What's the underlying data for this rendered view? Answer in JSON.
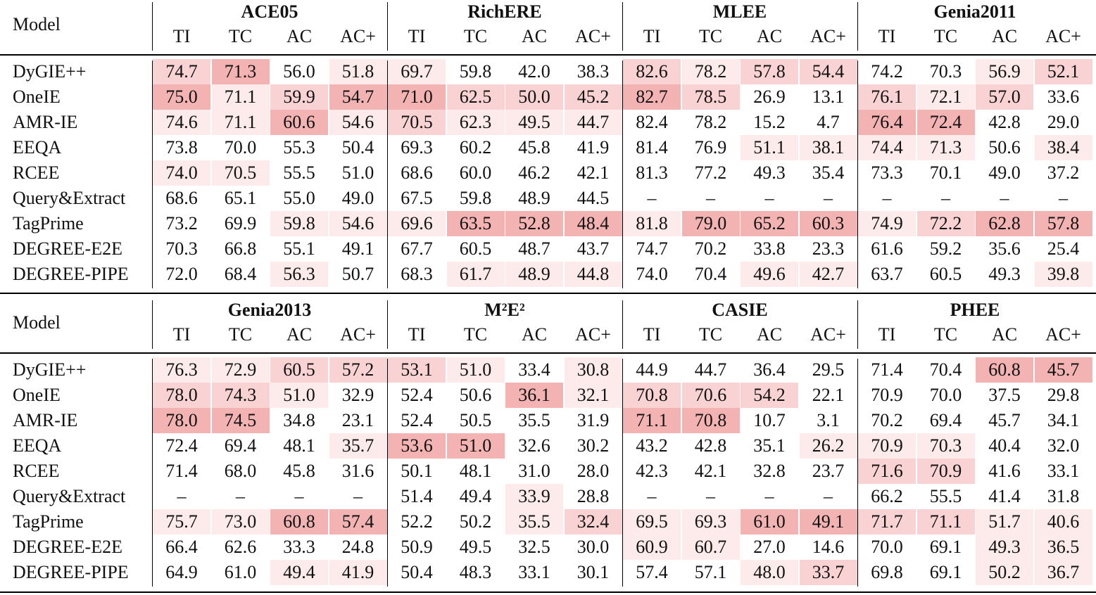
{
  "shade_colors": [
    "#fdeaea",
    "#f9d3d3",
    "#f3b3b3"
  ],
  "tables": [
    {
      "model_header": "Model",
      "groups": [
        {
          "name": "ACE05",
          "columns": [
            "TI",
            "TC",
            "AC",
            "AC+"
          ]
        },
        {
          "name": "RichERE",
          "columns": [
            "TI",
            "TC",
            "AC",
            "AC+"
          ]
        },
        {
          "name": "MLEE",
          "columns": [
            "TI",
            "TC",
            "AC",
            "AC+"
          ]
        },
        {
          "name": "Genia2011",
          "columns": [
            "TI",
            "TC",
            "AC",
            "AC+"
          ]
        }
      ],
      "rows": [
        {
          "model": "DyGIE++",
          "cells": [
            "74.7",
            "71.3",
            "56.0",
            "51.8",
            "69.7",
            "59.8",
            "42.0",
            "38.3",
            "82.6",
            "78.2",
            "57.8",
            "54.4",
            "74.2",
            "70.3",
            "56.9",
            "52.1"
          ],
          "shades": [
            2,
            3,
            0,
            1,
            1,
            0,
            0,
            0,
            2,
            1,
            2,
            2,
            0,
            0,
            1,
            2
          ]
        },
        {
          "model": "OneIE",
          "cells": [
            "75.0",
            "71.1",
            "59.9",
            "54.7",
            "71.0",
            "62.5",
            "50.0",
            "45.2",
            "82.7",
            "78.5",
            "26.9",
            "13.1",
            "76.1",
            "72.1",
            "57.0",
            "33.6"
          ],
          "shades": [
            3,
            1,
            2,
            3,
            3,
            2,
            2,
            2,
            3,
            2,
            0,
            0,
            2,
            1,
            2,
            0
          ]
        },
        {
          "model": "AMR-IE",
          "cells": [
            "74.6",
            "71.1",
            "60.6",
            "54.6",
            "70.5",
            "62.3",
            "49.5",
            "44.7",
            "82.4",
            "78.2",
            "15.2",
            "4.7",
            "76.4",
            "72.4",
            "42.8",
            "29.0"
          ],
          "shades": [
            1,
            1,
            3,
            1,
            2,
            1,
            1,
            1,
            0,
            0,
            0,
            0,
            3,
            3,
            0,
            0
          ]
        },
        {
          "model": "EEQA",
          "cells": [
            "73.8",
            "70.0",
            "55.3",
            "50.4",
            "69.3",
            "60.2",
            "45.8",
            "41.9",
            "81.4",
            "76.9",
            "51.1",
            "38.1",
            "74.4",
            "71.3",
            "50.6",
            "38.4"
          ],
          "shades": [
            0,
            0,
            0,
            0,
            0,
            0,
            0,
            0,
            0,
            0,
            1,
            1,
            1,
            1,
            0,
            1
          ]
        },
        {
          "model": "RCEE",
          "cells": [
            "74.0",
            "70.5",
            "55.5",
            "51.0",
            "68.6",
            "60.0",
            "46.2",
            "42.1",
            "81.3",
            "77.2",
            "49.3",
            "35.4",
            "73.3",
            "70.1",
            "49.0",
            "37.2"
          ],
          "shades": [
            1,
            1,
            0,
            0,
            0,
            0,
            0,
            0,
            0,
            0,
            0,
            0,
            0,
            0,
            0,
            0
          ]
        },
        {
          "model": "Query&Extract",
          "cells": [
            "68.6",
            "65.1",
            "55.0",
            "49.0",
            "67.5",
            "59.8",
            "48.9",
            "44.5",
            "–",
            "–",
            "–",
            "–",
            "–",
            "–",
            "–",
            "–"
          ],
          "shades": [
            0,
            0,
            0,
            0,
            0,
            0,
            0,
            0,
            0,
            0,
            0,
            0,
            0,
            0,
            0,
            0
          ]
        },
        {
          "model": "TagPrime",
          "cells": [
            "73.2",
            "69.9",
            "59.8",
            "54.6",
            "69.6",
            "63.5",
            "52.8",
            "48.4",
            "81.8",
            "79.0",
            "65.2",
            "60.3",
            "74.9",
            "72.2",
            "62.8",
            "57.8"
          ],
          "shades": [
            0,
            0,
            1,
            1,
            1,
            3,
            3,
            3,
            1,
            3,
            3,
            3,
            1,
            2,
            3,
            3
          ]
        },
        {
          "model": "DEGREE-E2E",
          "cells": [
            "70.3",
            "66.8",
            "55.1",
            "49.1",
            "67.7",
            "60.5",
            "48.7",
            "43.7",
            "74.7",
            "70.2",
            "33.8",
            "23.3",
            "61.6",
            "59.2",
            "35.6",
            "25.4"
          ],
          "shades": [
            0,
            0,
            0,
            0,
            0,
            0,
            0,
            0,
            0,
            0,
            0,
            0,
            0,
            0,
            0,
            0
          ]
        },
        {
          "model": "DEGREE-PIPE",
          "cells": [
            "72.0",
            "68.4",
            "56.3",
            "50.7",
            "68.3",
            "61.7",
            "48.9",
            "44.8",
            "74.0",
            "70.4",
            "49.6",
            "42.7",
            "63.7",
            "60.5",
            "49.3",
            "39.8"
          ],
          "shades": [
            0,
            0,
            1,
            0,
            0,
            1,
            1,
            1,
            0,
            0,
            1,
            1,
            0,
            0,
            0,
            1
          ]
        }
      ]
    },
    {
      "model_header": "Model",
      "groups": [
        {
          "name": "Genia2013",
          "columns": [
            "TI",
            "TC",
            "AC",
            "AC+"
          ]
        },
        {
          "name": "M²E²",
          "columns": [
            "TI",
            "TC",
            "AC",
            "AC+"
          ]
        },
        {
          "name": "CASIE",
          "columns": [
            "TI",
            "TC",
            "AC",
            "AC+"
          ]
        },
        {
          "name": "PHEE",
          "columns": [
            "TI",
            "TC",
            "AC",
            "AC+"
          ]
        }
      ],
      "rows": [
        {
          "model": "DyGIE++",
          "cells": [
            "76.3",
            "72.9",
            "60.5",
            "57.2",
            "53.1",
            "51.0",
            "33.4",
            "30.8",
            "44.9",
            "44.7",
            "36.4",
            "29.5",
            "71.4",
            "70.4",
            "60.8",
            "45.7"
          ],
          "shades": [
            1,
            1,
            2,
            2,
            2,
            1,
            0,
            1,
            0,
            0,
            0,
            0,
            0,
            0,
            3,
            3
          ]
        },
        {
          "model": "OneIE",
          "cells": [
            "78.0",
            "74.3",
            "51.0",
            "32.9",
            "52.4",
            "50.6",
            "36.1",
            "32.1",
            "70.8",
            "70.6",
            "54.2",
            "22.1",
            "70.9",
            "70.0",
            "37.5",
            "29.8"
          ],
          "shades": [
            2,
            2,
            1,
            0,
            0,
            0,
            3,
            1,
            2,
            2,
            2,
            0,
            0,
            0,
            0,
            0
          ]
        },
        {
          "model": "AMR-IE",
          "cells": [
            "78.0",
            "74.5",
            "34.8",
            "23.1",
            "52.4",
            "50.5",
            "35.5",
            "31.9",
            "71.1",
            "70.8",
            "10.7",
            "3.1",
            "70.2",
            "69.4",
            "45.7",
            "34.1"
          ],
          "shades": [
            3,
            3,
            0,
            0,
            0,
            0,
            0,
            0,
            3,
            3,
            0,
            0,
            0,
            0,
            0,
            0
          ]
        },
        {
          "model": "EEQA",
          "cells": [
            "72.4",
            "69.4",
            "48.1",
            "35.7",
            "53.6",
            "51.0",
            "32.6",
            "30.2",
            "43.2",
            "42.8",
            "35.1",
            "26.2",
            "70.9",
            "70.3",
            "40.4",
            "32.0"
          ],
          "shades": [
            0,
            0,
            0,
            1,
            3,
            3,
            0,
            0,
            0,
            0,
            0,
            1,
            1,
            1,
            0,
            0
          ]
        },
        {
          "model": "RCEE",
          "cells": [
            "71.4",
            "68.0",
            "45.8",
            "31.6",
            "50.1",
            "48.1",
            "31.0",
            "28.0",
            "42.3",
            "42.1",
            "32.8",
            "23.7",
            "71.6",
            "70.9",
            "41.6",
            "33.1"
          ],
          "shades": [
            0,
            0,
            0,
            0,
            0,
            0,
            0,
            0,
            0,
            0,
            0,
            0,
            2,
            2,
            0,
            0
          ]
        },
        {
          "model": "Query&Extract",
          "cells": [
            "–",
            "–",
            "–",
            "–",
            "51.4",
            "49.4",
            "33.9",
            "28.8",
            "–",
            "–",
            "–",
            "–",
            "66.2",
            "55.5",
            "41.4",
            "31.8"
          ],
          "shades": [
            0,
            0,
            0,
            0,
            0,
            0,
            1,
            0,
            0,
            0,
            0,
            0,
            0,
            0,
            0,
            0
          ]
        },
        {
          "model": "TagPrime",
          "cells": [
            "75.7",
            "73.0",
            "60.8",
            "57.4",
            "52.2",
            "50.2",
            "35.5",
            "32.4",
            "69.5",
            "69.3",
            "61.0",
            "49.1",
            "71.7",
            "71.1",
            "51.7",
            "40.6"
          ],
          "shades": [
            1,
            1,
            3,
            3,
            0,
            0,
            1,
            2,
            1,
            1,
            3,
            3,
            2,
            2,
            1,
            1
          ]
        },
        {
          "model": "DEGREE-E2E",
          "cells": [
            "66.4",
            "62.6",
            "33.3",
            "24.8",
            "50.9",
            "49.5",
            "32.5",
            "30.0",
            "60.9",
            "60.7",
            "27.0",
            "14.6",
            "70.0",
            "69.1",
            "49.3",
            "36.5"
          ],
          "shades": [
            0,
            0,
            0,
            0,
            0,
            0,
            0,
            0,
            1,
            1,
            0,
            0,
            0,
            0,
            1,
            1
          ]
        },
        {
          "model": "DEGREE-PIPE",
          "cells": [
            "64.9",
            "61.0",
            "49.4",
            "41.9",
            "50.4",
            "48.3",
            "33.1",
            "30.1",
            "57.4",
            "57.1",
            "48.0",
            "33.7",
            "69.8",
            "69.1",
            "50.2",
            "36.7"
          ],
          "shades": [
            0,
            0,
            1,
            1,
            0,
            0,
            0,
            0,
            0,
            0,
            1,
            2,
            0,
            0,
            1,
            1
          ]
        }
      ]
    }
  ]
}
